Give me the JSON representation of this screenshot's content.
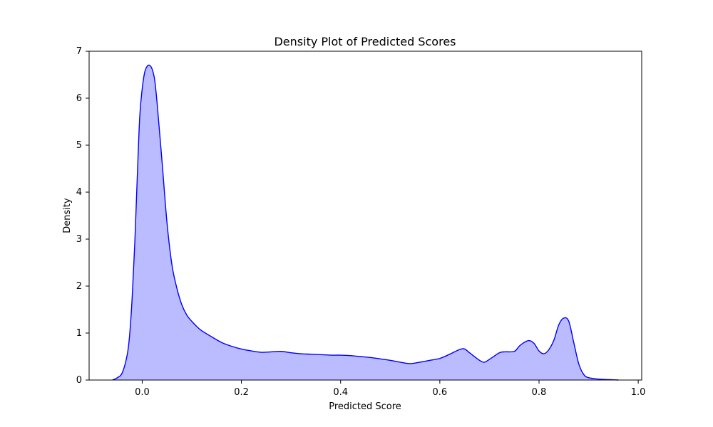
{
  "chart_data": {
    "type": "area",
    "title": "Density Plot of Predicted Scores",
    "xlabel": "Predicted Score",
    "ylabel": "Density",
    "xlim": [
      -0.107,
      1.007
    ],
    "ylim": [
      0,
      7.0
    ],
    "x_ticks": [
      "0.0",
      "0.2",
      "0.4",
      "0.6",
      "0.8",
      "1.0"
    ],
    "y_ticks": [
      "0",
      "1",
      "2",
      "3",
      "4",
      "5",
      "6",
      "7"
    ],
    "grid": false,
    "legend": "none",
    "colors": {
      "line": "#0000ff",
      "fill": "#bbbbff",
      "background": "#ffffff",
      "axis": "#000000"
    },
    "series": [
      {
        "x": [
          -0.06,
          -0.05,
          -0.04,
          -0.03,
          -0.025,
          -0.02,
          -0.015,
          -0.01,
          -0.005,
          0.0,
          0.005,
          0.01,
          0.015,
          0.02,
          0.025,
          0.03,
          0.04,
          0.05,
          0.06,
          0.07,
          0.08,
          0.09,
          0.1,
          0.11,
          0.12,
          0.14,
          0.16,
          0.18,
          0.2,
          0.22,
          0.24,
          0.26,
          0.28,
          0.3,
          0.32,
          0.34,
          0.36,
          0.38,
          0.4,
          0.42,
          0.44,
          0.46,
          0.48,
          0.5,
          0.52,
          0.54,
          0.56,
          0.58,
          0.6,
          0.62,
          0.64,
          0.65,
          0.66,
          0.68,
          0.69,
          0.7,
          0.72,
          0.73,
          0.75,
          0.76,
          0.77,
          0.78,
          0.79,
          0.8,
          0.81,
          0.82,
          0.83,
          0.84,
          0.85,
          0.86,
          0.87,
          0.88,
          0.89,
          0.9,
          0.92,
          0.94,
          0.96
        ],
        "y": [
          0.0,
          0.05,
          0.16,
          0.55,
          1.0,
          1.8,
          2.9,
          4.3,
          5.6,
          6.2,
          6.55,
          6.68,
          6.7,
          6.62,
          6.4,
          5.9,
          4.65,
          3.35,
          2.45,
          1.95,
          1.6,
          1.38,
          1.25,
          1.14,
          1.05,
          0.92,
          0.8,
          0.72,
          0.66,
          0.62,
          0.59,
          0.6,
          0.61,
          0.58,
          0.56,
          0.55,
          0.54,
          0.53,
          0.53,
          0.52,
          0.5,
          0.48,
          0.45,
          0.42,
          0.38,
          0.35,
          0.38,
          0.42,
          0.46,
          0.55,
          0.65,
          0.66,
          0.58,
          0.42,
          0.38,
          0.44,
          0.58,
          0.6,
          0.61,
          0.72,
          0.8,
          0.84,
          0.78,
          0.62,
          0.56,
          0.65,
          0.85,
          1.18,
          1.32,
          1.25,
          0.8,
          0.35,
          0.12,
          0.05,
          0.02,
          0.01,
          0.0
        ]
      }
    ]
  }
}
